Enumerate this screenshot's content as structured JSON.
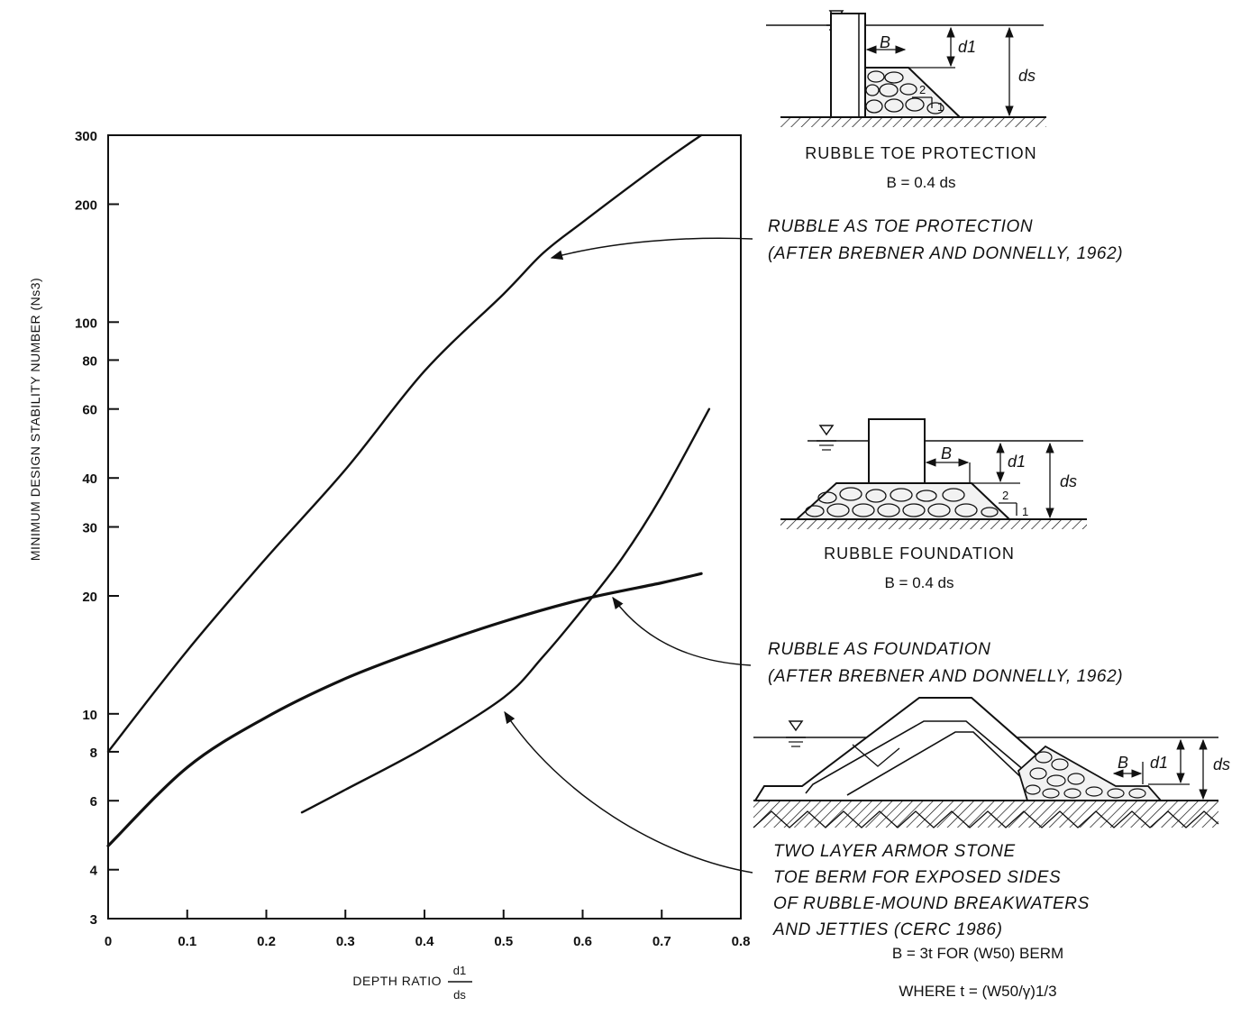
{
  "chart_data": {
    "type": "line",
    "xlabel": "DEPTH RATIO",
    "xlabel_fraction": {
      "numerator": "d1",
      "denominator": "ds"
    },
    "ylabel": "MINIMUM DESIGN STABILITY NUMBER (Ns3)",
    "xlim": [
      0,
      0.8
    ],
    "ylim": [
      3,
      300
    ],
    "yscale": "log",
    "x_ticks": [
      "0",
      "0.1",
      "0.2",
      "0.3",
      "0.4",
      "0.5",
      "0.6",
      "0.7",
      "0.8"
    ],
    "y_ticks": [
      3,
      4,
      6,
      8,
      10,
      20,
      30,
      40,
      60,
      80,
      100,
      200,
      300
    ],
    "grid": false,
    "series": [
      {
        "name": "RUBBLE AS TOE PROTECTION (AFTER BREBNER AND DONNELLY, 1962)",
        "x": [
          0,
          0.1,
          0.2,
          0.3,
          0.4,
          0.5,
          0.55,
          0.6,
          0.7,
          0.75
        ],
        "y": [
          8,
          14.5,
          25,
          42,
          75,
          118,
          150,
          180,
          255,
          300
        ]
      },
      {
        "name": "RUBBLE AS FOUNDATION (AFTER BREBNER AND DONNELLY, 1962)",
        "x": [
          0,
          0.1,
          0.2,
          0.3,
          0.4,
          0.5,
          0.6,
          0.7,
          0.75
        ],
        "y": [
          4.6,
          7.3,
          9.8,
          12.3,
          14.7,
          17.2,
          19.6,
          21.6,
          22.8
        ]
      },
      {
        "name": "TWO LAYER ARMOR STONE TOE BERM FOR EXPOSED SIDES OF RUBBLE-MOUND BREAKWATERS AND JETTIES (CERC 1986)",
        "x": [
          0.245,
          0.3,
          0.4,
          0.5,
          0.55,
          0.6,
          0.65,
          0.7,
          0.76
        ],
        "y": [
          5.6,
          6.4,
          8.2,
          11,
          14,
          18.5,
          25,
          36,
          60
        ]
      }
    ],
    "annotations": [
      {
        "target_series": 0,
        "lines": [
          "RUBBLE AS TOE PROTECTION",
          "(AFTER BREBNER AND DONNELLY, 1962)"
        ]
      },
      {
        "target_series": 1,
        "lines": [
          "RUBBLE AS FOUNDATION",
          "(AFTER BREBNER AND DONNELLY, 1962)"
        ]
      },
      {
        "target_series": 2,
        "lines": [
          "TWO LAYER ARMOR STONE",
          "TOE BERM FOR EXPOSED SIDES",
          "OF RUBBLE-MOUND BREAKWATERS",
          "AND JETTIES (CERC 1986)"
        ]
      }
    ]
  },
  "diagrams": {
    "toe": {
      "caption": "RUBBLE TOE PROTECTION",
      "equation": "B = 0.4 ds",
      "labels": {
        "b": "B",
        "d1": "d1",
        "ds": "ds",
        "slope_v": "2",
        "slope_h": "1"
      }
    },
    "foundation": {
      "caption": "RUBBLE FOUNDATION",
      "equation": "B = 0.4 ds",
      "labels": {
        "b": "B",
        "d1": "d1",
        "ds": "ds",
        "slope_v": "2",
        "slope_h": "1"
      }
    },
    "berm": {
      "equation1": "B = 3t FOR (W50) BERM",
      "equation2": "WHERE t = (W50/γ)1/3",
      "labels": {
        "b": "B",
        "d1": "d1",
        "ds": "ds"
      }
    }
  }
}
